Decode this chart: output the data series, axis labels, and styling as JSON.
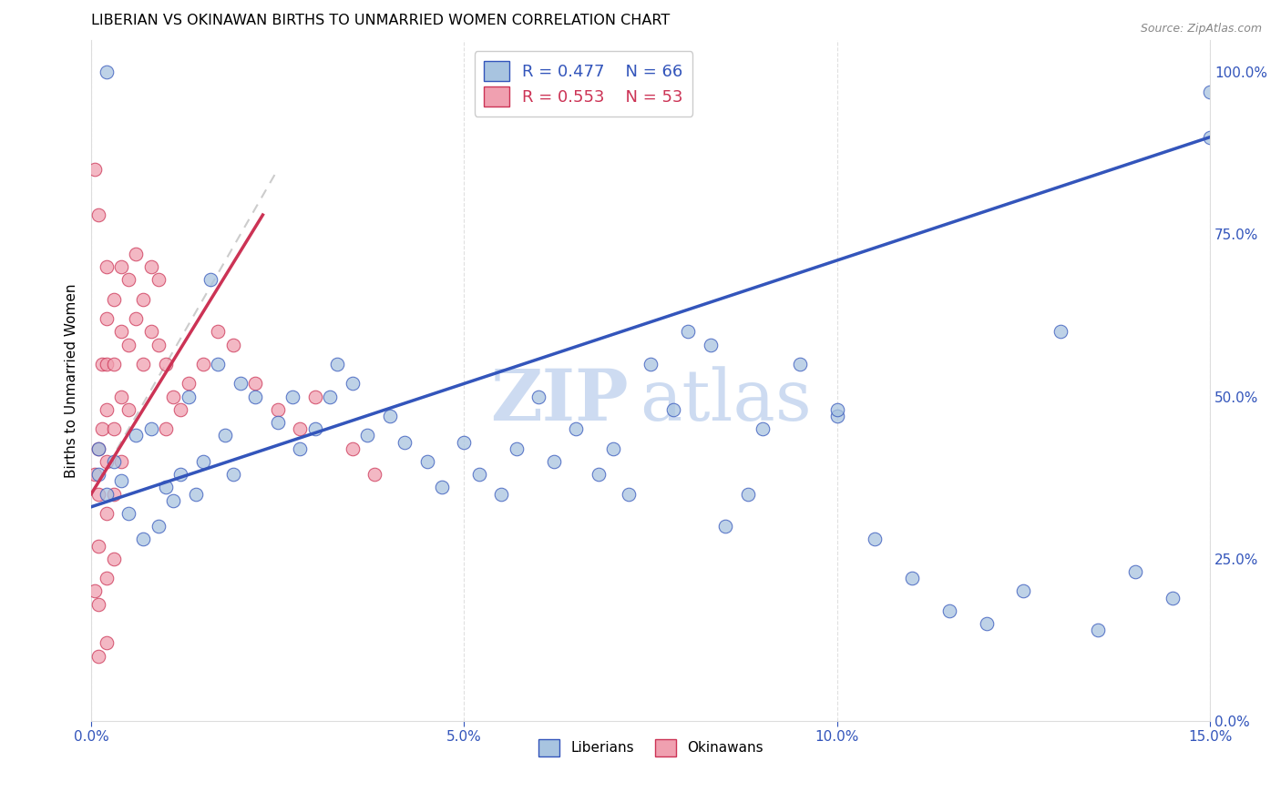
{
  "title": "LIBERIAN VS OKINAWAN BIRTHS TO UNMARRIED WOMEN CORRELATION CHART",
  "source": "Source: ZipAtlas.com",
  "ylabel": "Births to Unmarried Women",
  "xlabel_ticks": [
    "0.0%",
    "5.0%",
    "10.0%",
    "15.0%"
  ],
  "xlabel_vals": [
    0.0,
    0.05,
    0.1,
    0.15
  ],
  "ylabel_ticks": [
    "100.0%",
    "75.0%",
    "50.0%",
    "25.0%",
    "0.0%"
  ],
  "ylabel_vals_right": [
    1.0,
    0.75,
    0.5,
    0.25,
    0.0
  ],
  "xlim": [
    0.0,
    0.15
  ],
  "ylim": [
    0.0,
    1.05
  ],
  "liberian_R": 0.477,
  "liberian_N": 66,
  "okinawan_R": 0.553,
  "okinawan_N": 53,
  "blue_color": "#A8C4E0",
  "pink_color": "#F0A0B0",
  "blue_line_color": "#3355BB",
  "pink_line_color": "#CC3355",
  "grid_color": "#CCCCCC",
  "watermark_zip": "ZIP",
  "watermark_atlas": "atlas",
  "liberian_x": [
    0.001,
    0.001,
    0.002,
    0.003,
    0.004,
    0.005,
    0.006,
    0.007,
    0.008,
    0.009,
    0.01,
    0.011,
    0.012,
    0.013,
    0.014,
    0.015,
    0.016,
    0.017,
    0.018,
    0.019,
    0.02,
    0.022,
    0.025,
    0.027,
    0.028,
    0.03,
    0.032,
    0.033,
    0.035,
    0.037,
    0.04,
    0.042,
    0.045,
    0.047,
    0.05,
    0.052,
    0.055,
    0.057,
    0.06,
    0.062,
    0.065,
    0.068,
    0.07,
    0.072,
    0.075,
    0.078,
    0.08,
    0.083,
    0.085,
    0.088,
    0.09,
    0.095,
    0.1,
    0.1,
    0.105,
    0.11,
    0.115,
    0.12,
    0.125,
    0.13,
    0.135,
    0.14,
    0.145,
    0.15,
    0.15,
    0.002
  ],
  "liberian_y": [
    0.38,
    0.42,
    0.35,
    0.4,
    0.37,
    0.32,
    0.44,
    0.28,
    0.45,
    0.3,
    0.36,
    0.34,
    0.38,
    0.5,
    0.35,
    0.4,
    0.68,
    0.55,
    0.44,
    0.38,
    0.52,
    0.5,
    0.46,
    0.5,
    0.42,
    0.45,
    0.5,
    0.55,
    0.52,
    0.44,
    0.47,
    0.43,
    0.4,
    0.36,
    0.43,
    0.38,
    0.35,
    0.42,
    0.5,
    0.4,
    0.45,
    0.38,
    0.42,
    0.35,
    0.55,
    0.48,
    0.6,
    0.58,
    0.3,
    0.35,
    0.45,
    0.55,
    0.47,
    0.48,
    0.28,
    0.22,
    0.17,
    0.15,
    0.2,
    0.6,
    0.14,
    0.23,
    0.19,
    0.9,
    0.97,
    1.0
  ],
  "okinawan_x": [
    0.0005,
    0.0005,
    0.001,
    0.001,
    0.001,
    0.001,
    0.001,
    0.0015,
    0.0015,
    0.002,
    0.002,
    0.002,
    0.002,
    0.002,
    0.002,
    0.002,
    0.003,
    0.003,
    0.003,
    0.003,
    0.003,
    0.004,
    0.004,
    0.004,
    0.004,
    0.005,
    0.005,
    0.005,
    0.006,
    0.006,
    0.007,
    0.007,
    0.008,
    0.008,
    0.009,
    0.009,
    0.01,
    0.01,
    0.011,
    0.012,
    0.013,
    0.015,
    0.017,
    0.019,
    0.022,
    0.025,
    0.028,
    0.03,
    0.035,
    0.038,
    0.0005,
    0.001,
    0.002
  ],
  "okinawan_y": [
    0.38,
    0.2,
    0.35,
    0.42,
    0.27,
    0.18,
    0.1,
    0.55,
    0.45,
    0.62,
    0.55,
    0.48,
    0.4,
    0.32,
    0.22,
    0.12,
    0.65,
    0.55,
    0.45,
    0.35,
    0.25,
    0.7,
    0.6,
    0.5,
    0.4,
    0.68,
    0.58,
    0.48,
    0.72,
    0.62,
    0.65,
    0.55,
    0.7,
    0.6,
    0.68,
    0.58,
    0.55,
    0.45,
    0.5,
    0.48,
    0.52,
    0.55,
    0.6,
    0.58,
    0.52,
    0.48,
    0.45,
    0.5,
    0.42,
    0.38,
    0.85,
    0.78,
    0.7
  ],
  "blue_line_x": [
    0.0,
    0.15
  ],
  "blue_line_y": [
    0.33,
    0.9
  ],
  "pink_line_x": [
    0.0,
    0.023
  ],
  "pink_line_y": [
    0.35,
    0.78
  ]
}
